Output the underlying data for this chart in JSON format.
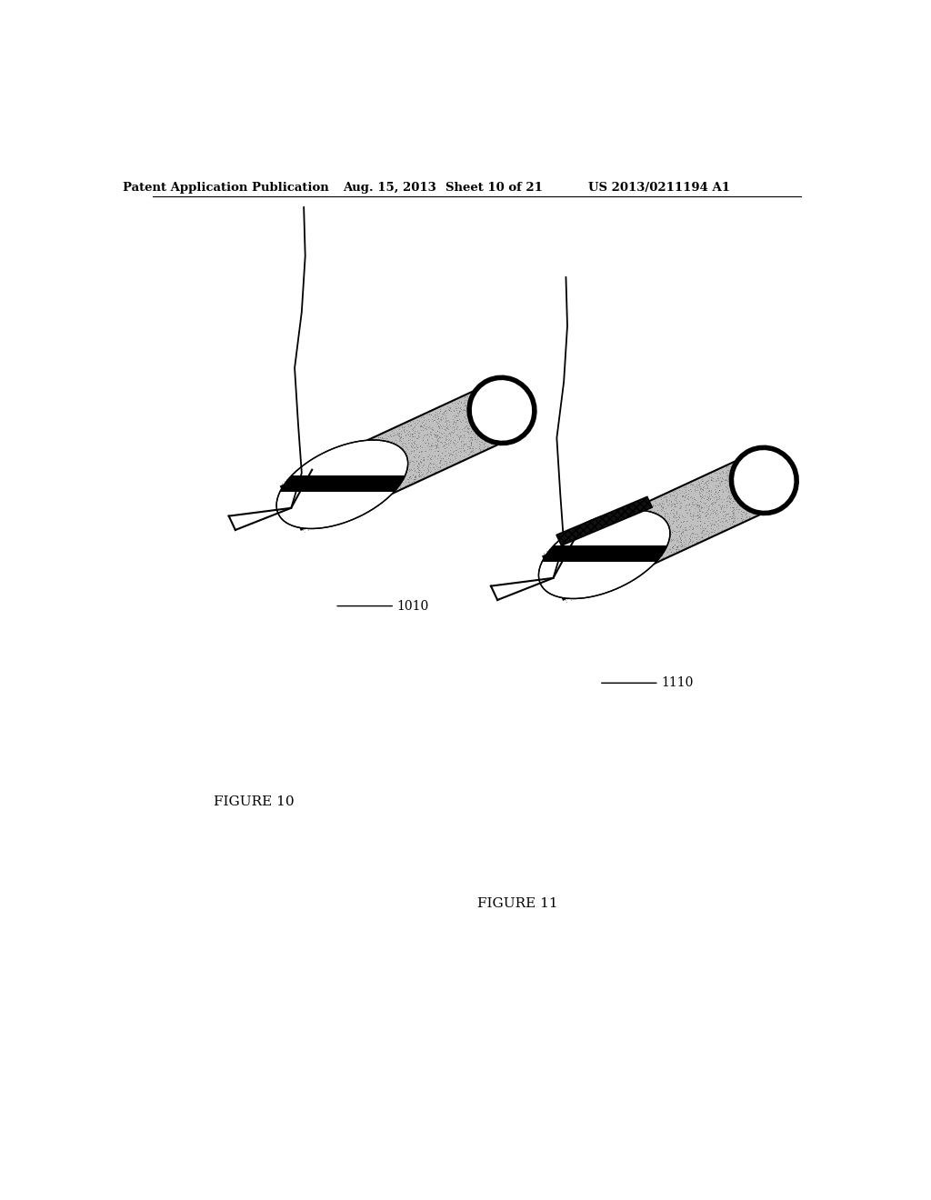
{
  "background_color": "#ffffff",
  "header_text": "Patent Application Publication",
  "header_date": "Aug. 15, 2013",
  "header_sheet": "Sheet 10 of 21",
  "header_patent": "US 2013/0211194 A1",
  "fig10_label": "FIGURE 10",
  "fig11_label": "FIGURE 11",
  "label_1010": "1010",
  "label_1110": "1110"
}
